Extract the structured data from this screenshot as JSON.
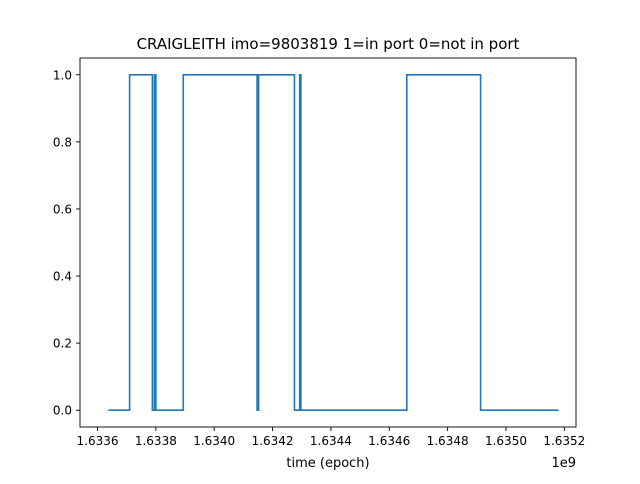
{
  "chart_data": {
    "type": "line",
    "title": "CRAIGLEITH imo=9803819 1=in port 0=not in port",
    "xlabel": "time (epoch)",
    "ylabel": "",
    "x_offset_label": "1e9",
    "xlim": [
      1.63354,
      1.63524
    ],
    "ylim": [
      -0.05,
      1.05
    ],
    "x_ticks": [
      1.6336,
      1.6338,
      1.634,
      1.6342,
      1.6344,
      1.6346,
      1.6348,
      1.635,
      1.6352
    ],
    "x_tick_labels": [
      "1.6336",
      "1.6338",
      "1.6340",
      "1.6342",
      "1.6344",
      "1.6346",
      "1.6348",
      "1.6350",
      "1.6352"
    ],
    "y_ticks": [
      0.0,
      0.2,
      0.4,
      0.6,
      0.8,
      1.0
    ],
    "y_tick_labels": [
      "0.0",
      "0.2",
      "0.4",
      "0.6",
      "0.8",
      "1.0"
    ],
    "grid": false,
    "line_color": "#1f77b4",
    "series": [
      {
        "x": [
          1.633637,
          1.63371,
          1.63371,
          1.633788,
          1.633788,
          1.633795,
          1.633795,
          1.6338,
          1.6338,
          1.633894,
          1.633894,
          1.634147,
          1.634147,
          1.634152,
          1.634152,
          1.634275,
          1.634275,
          1.634293,
          1.634293,
          1.634297,
          1.634297,
          1.63466,
          1.63466,
          1.634913,
          1.634913,
          1.63518
        ],
        "y": [
          0,
          0,
          1,
          1,
          0,
          0,
          1,
          1,
          0,
          0,
          1,
          1,
          0,
          0,
          1,
          1,
          0,
          0,
          1,
          1,
          0,
          0,
          1,
          1,
          0,
          0
        ]
      }
    ]
  }
}
